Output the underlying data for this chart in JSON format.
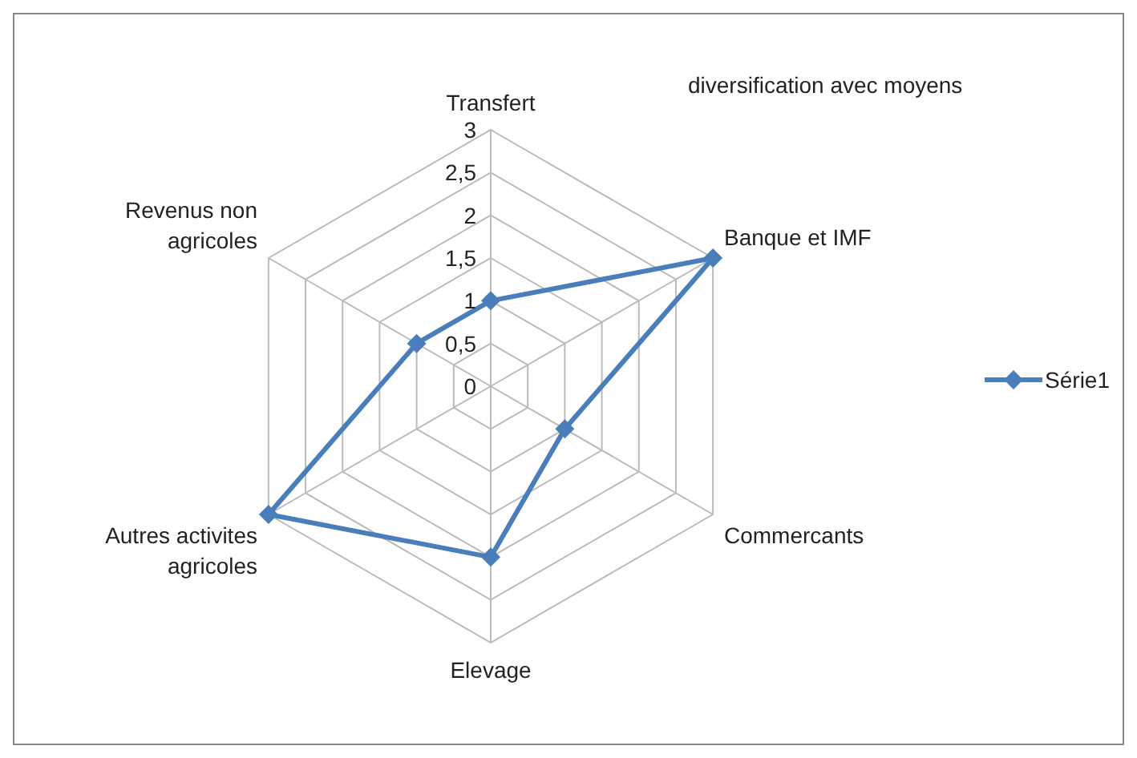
{
  "chart_data": {
    "type": "radar",
    "title": "diversification avec moyens",
    "categories": [
      "Transfert",
      "Banque et IMF",
      "Commercants",
      "Elevage",
      "Autres activites agricoles",
      "Revenus non agricoles"
    ],
    "series": [
      {
        "name": "Série1",
        "color": "#4a7ebb",
        "values": [
          1,
          3,
          1,
          2,
          3,
          1
        ]
      }
    ],
    "ylim": [
      0,
      3
    ],
    "yticks": [
      0,
      {
        "value": 0.5,
        "label": "0,5"
      },
      1,
      {
        "value": 1.5,
        "label": "1,5"
      },
      2,
      {
        "value": 2.5,
        "label": "2,5"
      },
      3
    ],
    "grid": true,
    "legend": "right",
    "marker": "diamond",
    "line_style": "solid"
  }
}
